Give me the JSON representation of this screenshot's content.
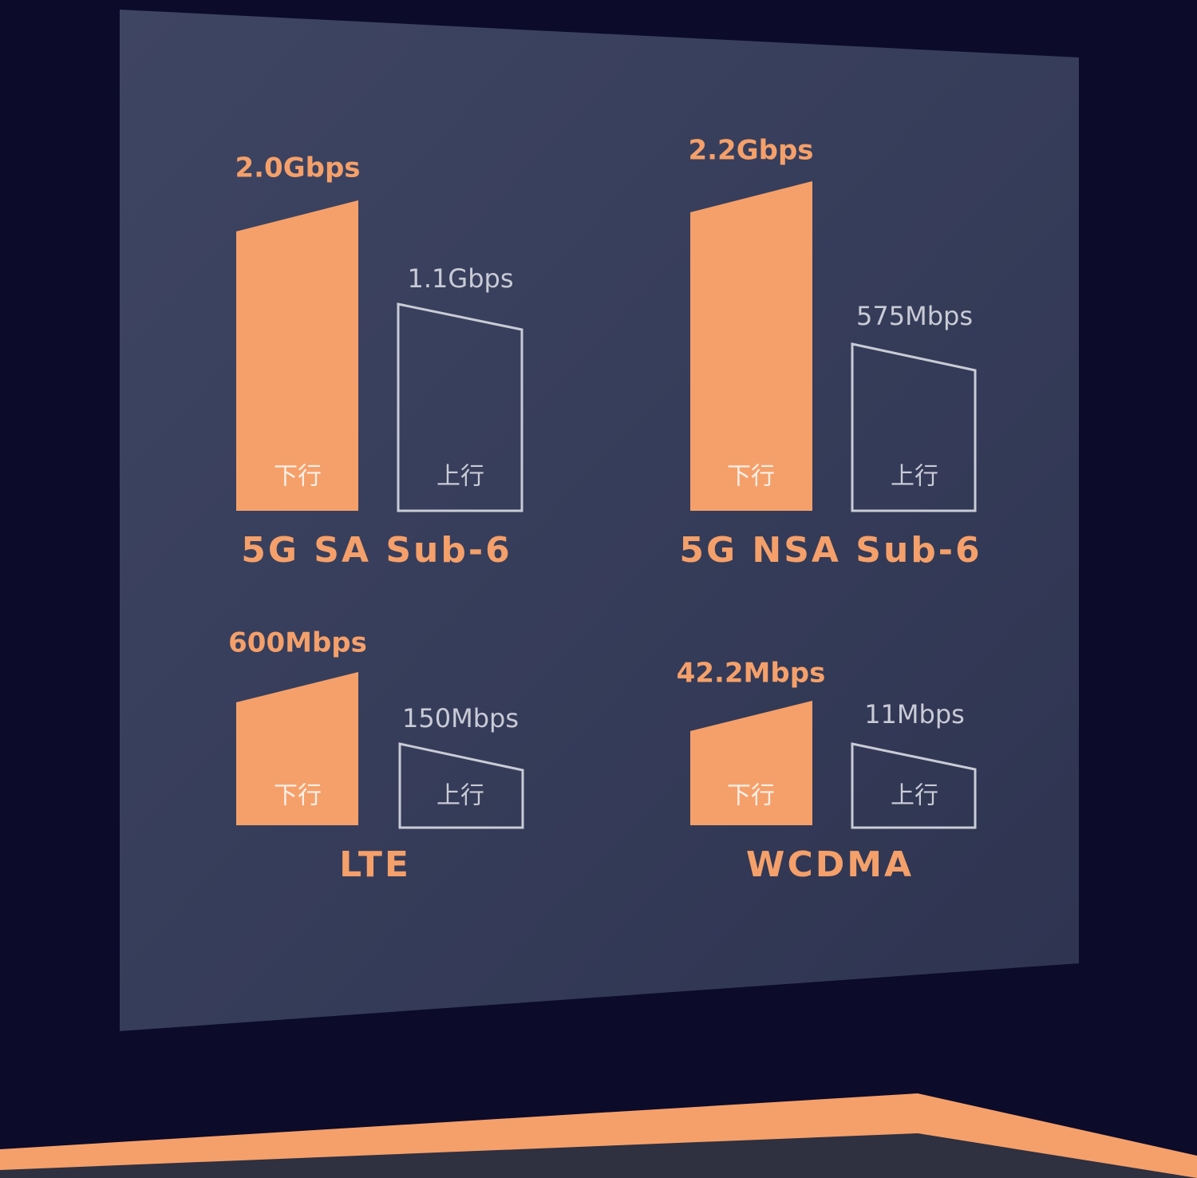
{
  "panels": [
    {
      "title": "5G SA Sub-6",
      "downlink": {
        "label": "下行",
        "speed": "2.0Gbps"
      },
      "uplink": {
        "label": "上行",
        "speed": "1.1Gbps"
      }
    },
    {
      "title": "5G NSA Sub-6",
      "downlink": {
        "label": "下行",
        "speed": "2.2Gbps"
      },
      "uplink": {
        "label": "上行",
        "speed": "575Mbps"
      }
    },
    {
      "title": "LTE",
      "downlink": {
        "label": "下行",
        "speed": "600Mbps"
      },
      "uplink": {
        "label": "上行",
        "speed": "150Mbps"
      }
    },
    {
      "title": "WCDMA",
      "downlink": {
        "label": "下行",
        "speed": "42.2Mbps"
      },
      "uplink": {
        "label": "上行",
        "speed": "11Mbps"
      }
    }
  ]
}
